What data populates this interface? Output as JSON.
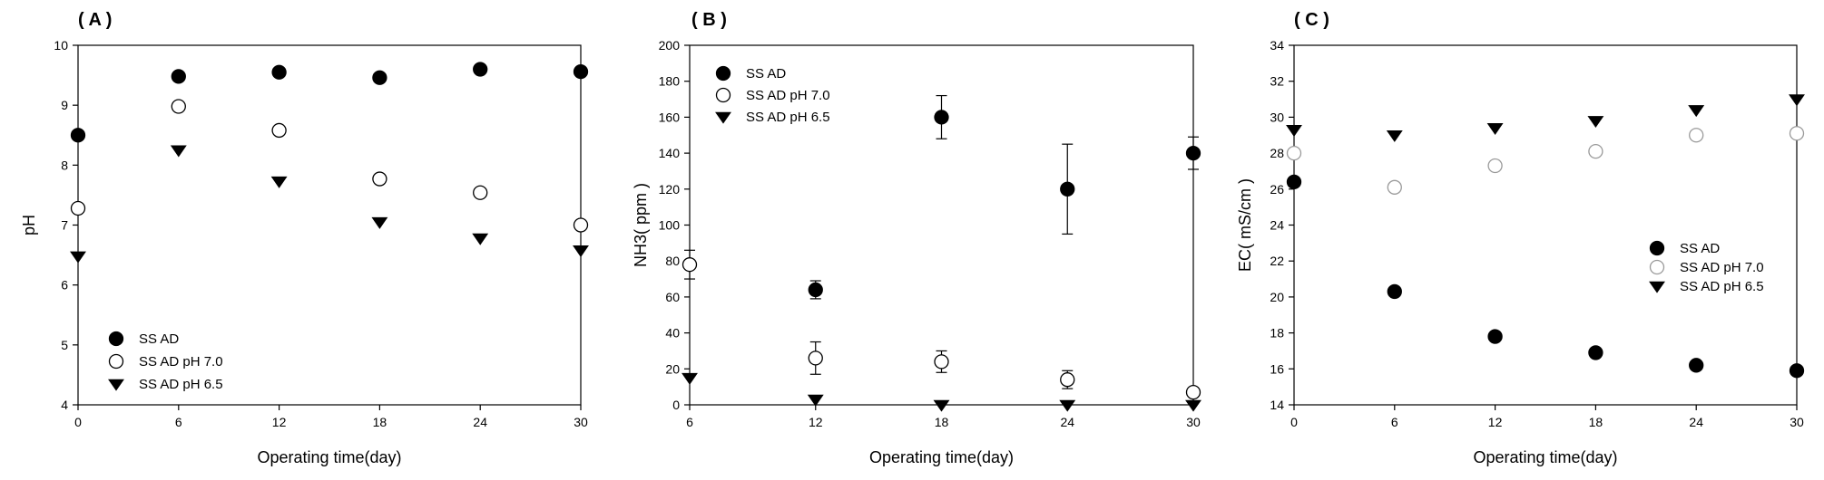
{
  "chart_data": [
    {
      "type": "scatter",
      "panel_label": "( A )",
      "xlabel": "Operating time(day)",
      "ylabel": "pH",
      "xlim": [
        0,
        30
      ],
      "ylim": [
        4,
        10
      ],
      "x_ticks": [
        "0",
        "6",
        "12",
        "18",
        "24",
        "30"
      ],
      "y_ticks": [
        "4",
        "5",
        "6",
        "7",
        "8",
        "9",
        "10"
      ],
      "grid": false,
      "legend_position": "bottom-left",
      "series": [
        {
          "name": "SS AD",
          "marker": "filled-circle",
          "x": [
            0,
            6,
            12,
            18,
            24,
            30
          ],
          "y": [
            8.5,
            9.48,
            9.55,
            9.46,
            9.6,
            9.56
          ],
          "err": [
            0,
            0,
            0,
            0,
            0,
            0
          ]
        },
        {
          "name": "SS AD pH 7.0",
          "marker": "open-circle",
          "x": [
            0,
            6,
            12,
            18,
            24,
            30
          ],
          "y": [
            7.28,
            8.98,
            8.58,
            7.77,
            7.54,
            7.0
          ],
          "err": [
            0,
            0,
            0,
            0,
            0,
            0
          ]
        },
        {
          "name": "SS AD pH 6.5",
          "marker": "triangle-down",
          "x": [
            0,
            6,
            12,
            18,
            24,
            30
          ],
          "y": [
            6.48,
            8.25,
            7.73,
            7.05,
            6.78,
            6.58
          ],
          "err": [
            0,
            0,
            0,
            0,
            0,
            0
          ]
        }
      ]
    },
    {
      "type": "scatter",
      "panel_label": "( B )",
      "xlabel": "Operating time(day)",
      "ylabel": "NH3( ppm )",
      "xlim": [
        6,
        30
      ],
      "ylim": [
        0,
        200
      ],
      "x_ticks": [
        "6",
        "12",
        "18",
        "24",
        "30"
      ],
      "y_ticks": [
        "0",
        "20",
        "40",
        "60",
        "80",
        "100",
        "120",
        "140",
        "160",
        "180",
        "200"
      ],
      "grid": false,
      "legend_position": "top-left",
      "series": [
        {
          "name": "SS AD",
          "marker": "filled-circle",
          "x": [
            12,
            18,
            24,
            30
          ],
          "y": [
            64,
            160,
            120,
            140
          ],
          "err": [
            5,
            12,
            25,
            9
          ]
        },
        {
          "name": "SS AD pH 7.0",
          "marker": "open-circle",
          "x": [
            6,
            12,
            18,
            24,
            30
          ],
          "y": [
            78,
            26,
            24,
            14,
            7
          ],
          "err": [
            8,
            9,
            6,
            5,
            0
          ]
        },
        {
          "name": "SS AD pH 6.5",
          "marker": "triangle-down",
          "x": [
            6,
            12,
            18,
            24,
            30
          ],
          "y": [
            15,
            3,
            0,
            0,
            0
          ],
          "err": [
            0,
            0,
            0,
            0,
            0
          ]
        }
      ]
    },
    {
      "type": "scatter",
      "panel_label": "( C )",
      "xlabel": "Operating time(day)",
      "ylabel": "EC( mS/cm )",
      "xlim": [
        0,
        30
      ],
      "ylim": [
        14,
        34
      ],
      "x_ticks": [
        "0",
        "6",
        "12",
        "18",
        "24",
        "30"
      ],
      "y_ticks": [
        "14",
        "16",
        "18",
        "20",
        "22",
        "24",
        "26",
        "28",
        "30",
        "32",
        "34"
      ],
      "grid": false,
      "legend_position": "center-right",
      "series": [
        {
          "name": "SS AD",
          "marker": "filled-circle",
          "x": [
            0,
            6,
            12,
            18,
            24,
            30
          ],
          "y": [
            26.4,
            20.3,
            17.8,
            16.9,
            16.2,
            15.9
          ],
          "err": [
            0,
            0,
            0,
            0,
            0,
            0
          ]
        },
        {
          "name": "SS AD pH 7.0",
          "marker": "open-circle-gray",
          "x": [
            0,
            6,
            12,
            18,
            24,
            30
          ],
          "y": [
            28.0,
            26.1,
            27.3,
            28.1,
            29.0,
            29.1
          ],
          "err": [
            0,
            0,
            0,
            0,
            0,
            0
          ]
        },
        {
          "name": "SS AD pH 6.5",
          "marker": "triangle-down",
          "x": [
            0,
            6,
            12,
            18,
            24,
            30
          ],
          "y": [
            29.3,
            29.0,
            29.4,
            29.8,
            30.4,
            31.0
          ],
          "err": [
            0,
            0,
            0,
            0,
            0,
            0
          ]
        }
      ]
    }
  ]
}
